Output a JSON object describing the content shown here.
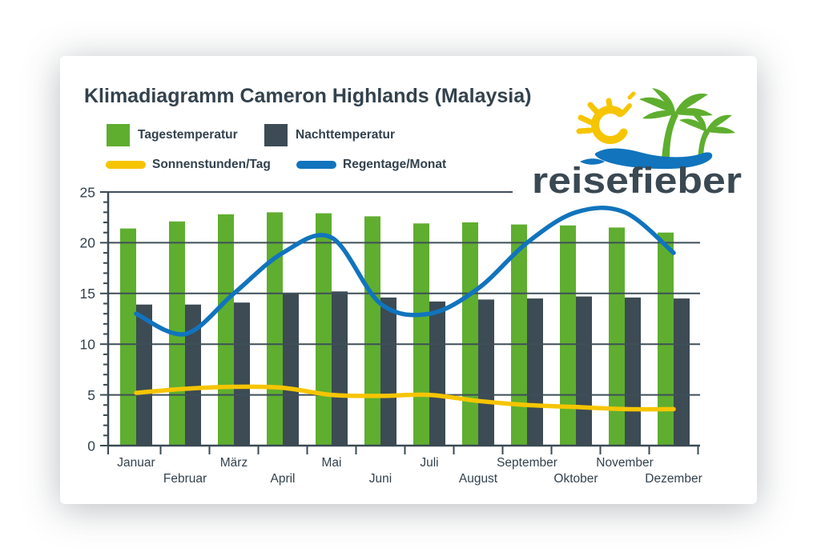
{
  "logo": {
    "text": "reisefieber",
    "icon": "sun-palms-wave",
    "colors": {
      "sun": "#f6c500",
      "palms": "#5fae2f",
      "water": "#1174bd",
      "wordmark": "#3a4852"
    }
  },
  "chart_data": {
    "type": "bar",
    "title": "Klimadiagramm Cameron Highlands (Malaysia)",
    "categories": [
      "Januar",
      "Februar",
      "März",
      "April",
      "Mai",
      "Juni",
      "Juli",
      "August",
      "September",
      "Oktober",
      "November",
      "Dezember"
    ],
    "series": [
      {
        "name": "Tagestemperatur",
        "type": "bar",
        "color": "#5fae2f",
        "values": [
          21.4,
          22.1,
          22.8,
          23.0,
          22.9,
          22.6,
          21.9,
          22.0,
          21.8,
          21.7,
          21.5,
          21.0
        ]
      },
      {
        "name": "Nachttemperatur",
        "type": "bar",
        "color": "#3c4b54",
        "values": [
          13.9,
          13.9,
          14.1,
          15.0,
          15.2,
          14.6,
          14.2,
          14.4,
          14.5,
          14.7,
          14.6,
          14.5
        ]
      },
      {
        "name": "Sonnenstunden/Tag",
        "type": "line",
        "color": "#f6c500",
        "values": [
          5.2,
          5.6,
          5.8,
          5.7,
          5.0,
          4.9,
          5.0,
          4.4,
          4.0,
          3.8,
          3.6,
          3.6
        ]
      },
      {
        "name": "Regentage/Monat",
        "type": "line",
        "color": "#1174bd",
        "values": [
          13,
          11,
          15,
          19,
          20.5,
          14,
          13,
          15.5,
          20,
          23,
          23,
          19
        ]
      }
    ],
    "ylim": [
      0,
      25
    ],
    "y_ticks": [
      0,
      5,
      10,
      15,
      20,
      25
    ],
    "y_minor_step": 1,
    "grid": true,
    "legend_position": "top-left",
    "axis_color": "#3a4a53",
    "grid_color": "#3f4f59",
    "text_color": "#33424d"
  }
}
